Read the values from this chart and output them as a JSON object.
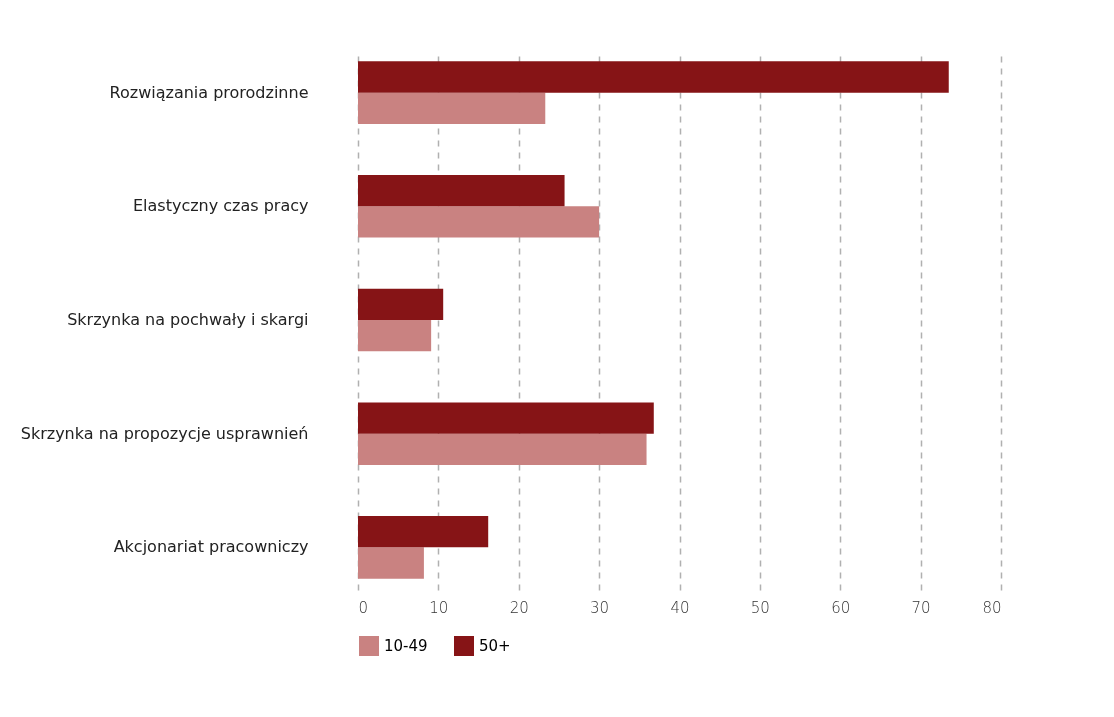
{
  "chart_data": {
    "type": "bar",
    "orientation": "horizontal",
    "categories": [
      "Rozwiązania prorodzinne",
      "Elastyczny czas pracy",
      "Skrzynka na pochwały i skargi",
      "Skrzynka na propozycje usprawnień",
      "Akcjonariat pracowniczy"
    ],
    "series": [
      {
        "name": "10-49",
        "color": "#c98281",
        "values": [
          23.3,
          30.0,
          9.1,
          35.9,
          8.2
        ]
      },
      {
        "name": "50+",
        "color": "#861416",
        "values": [
          73.5,
          25.7,
          10.6,
          36.8,
          16.2
        ]
      }
    ],
    "xlim": [
      0,
      80
    ],
    "xticks": [
      0,
      10,
      20,
      30,
      40,
      50,
      60,
      70,
      80
    ],
    "grid": "x",
    "legend": "bottom"
  }
}
